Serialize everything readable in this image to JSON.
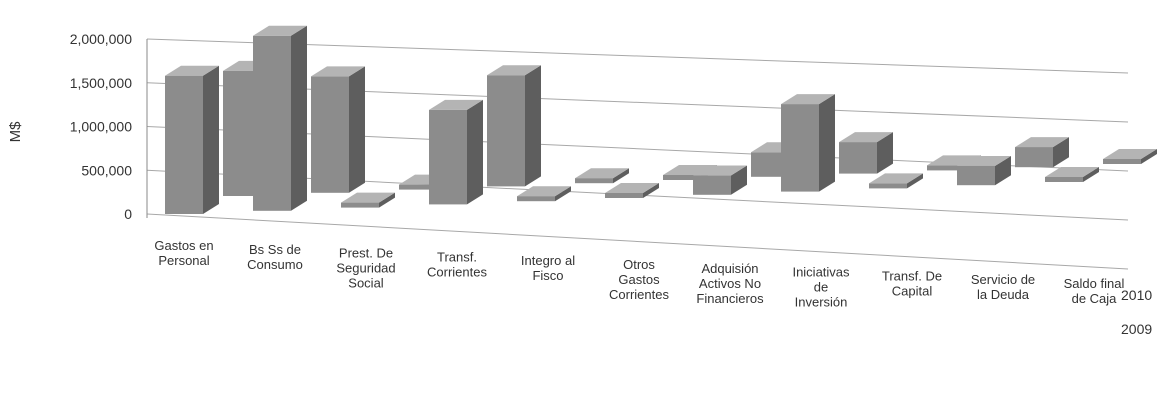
{
  "chart_data": {
    "type": "bar",
    "ylabel": "M$",
    "ylim": [
      0,
      2000000
    ],
    "yticks": [
      "2,000,000",
      "1,500,000",
      "1,000,000",
      "500,000",
      "0"
    ],
    "yticks_values": [
      2000000,
      1500000,
      1000000,
      500000,
      0
    ],
    "grid": true,
    "categories": [
      "Gastos en Personal",
      "Bs Ss de Consumo",
      "Prest. De Seguridad Social",
      "Transf. Corrientes",
      "Integro al Fisco",
      "Otros Gastos Corrientes",
      "Adquisión Activos No Financieros",
      "Iniciativas de Inversión",
      "Transf. De Capital",
      "Servicio de la Deuda",
      "Saldo final de Caja"
    ],
    "series": [
      {
        "name": "2009",
        "values": [
          1580000,
          2000000,
          20000,
          1080000,
          20000,
          20000,
          220000,
          1000000,
          20000,
          220000,
          20000
        ]
      },
      {
        "name": "2010",
        "values": [
          1430000,
          1330000,
          20000,
          1270000,
          20000,
          20000,
          280000,
          360000,
          20000,
          230000,
          20000
        ]
      }
    ],
    "colors": {
      "front": "#8c8c8c",
      "side": "#5e5e5e",
      "top": "#b4b4b4"
    }
  }
}
